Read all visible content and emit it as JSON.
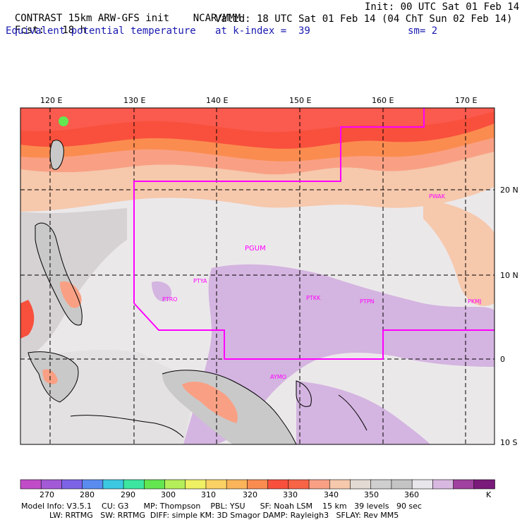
{
  "header": {
    "title": "CONTRAST 15km ARW-GFS init",
    "org": "NCAR/MMM",
    "init": "Init: 00 UTC Sat 01 Feb 14",
    "fcst_label": "Fcst:",
    "fcst_value": "18 h",
    "valid": "Valid: 18 UTC Sat 01 Feb 14 (04 ChT Sun 02 Feb 14)",
    "field": "Equivalent potential temperature",
    "level": "at k-index =  39",
    "smoothing": "sm= 2"
  },
  "map": {
    "lon_ticks": [
      "120 E",
      "130 E",
      "140 E",
      "150 E",
      "160 E",
      "170 E"
    ],
    "lat_ticks": [
      "20 N",
      "10 N",
      "0",
      "10 S"
    ],
    "stations": [
      "PWAK",
      "PGUM",
      "PTYA",
      "PTRO",
      "PTKK",
      "PTPN",
      "PKMJ",
      "AYMO"
    ],
    "colors": {
      "land": "#c9c9c9",
      "warm1": "#fb5a4e",
      "warm2": "#f9a084",
      "warm3": "#f6c8ac",
      "cool": "#d4b4e0",
      "pale": "#ebe8ea",
      "boundary": "#ff00ff"
    }
  },
  "colorbar": {
    "labels": [
      "270",
      "280",
      "290",
      "300",
      "310",
      "320",
      "330",
      "340",
      "350",
      "360",
      "K"
    ],
    "colors": [
      "#c04cc8",
      "#a35ad6",
      "#7c64e6",
      "#5a8cf0",
      "#3cc8e0",
      "#3ce6a0",
      "#64e650",
      "#b4ee5a",
      "#f0f064",
      "#fad264",
      "#fbb45a",
      "#fb8c50",
      "#f8503c",
      "#f86446",
      "#f9a084",
      "#f6c8ac",
      "#e3dad4",
      "#cfcfcf",
      "#c4c4c4",
      "#e8e6ea",
      "#d8b8e0",
      "#a040a0",
      "#7a1a7a"
    ]
  },
  "model_info": {
    "line1": "Model Info: V3.5.1    CU: G3      MP: Thompson    PBL: YSU      SF: Noah LSM    15 km   39 levels   90 sec",
    "line2": "LW: RRTMG   SW: RRTMG  DIFF: simple KM: 3D Smagor DAMP: Rayleigh3   SFLAY: Rev MM5"
  }
}
